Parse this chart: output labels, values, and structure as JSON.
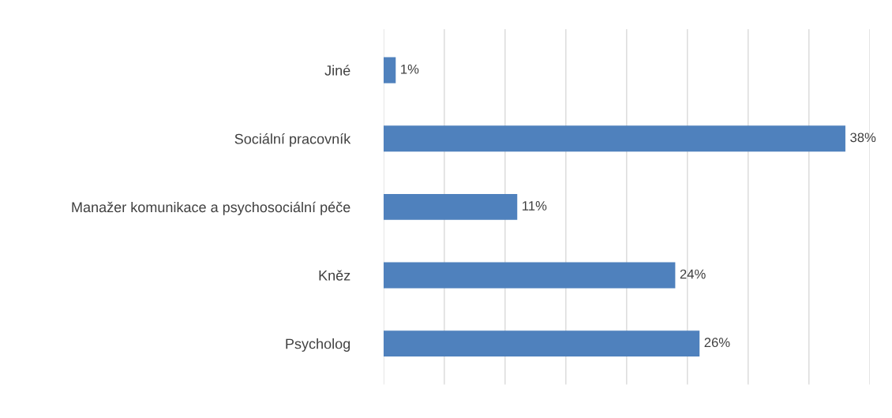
{
  "chart_data": {
    "type": "bar",
    "orientation": "horizontal",
    "categories": [
      "Jiné",
      "Sociální pracovník",
      "Manažer komunikace a psychosociální péče",
      "Kněz",
      "Psycholog"
    ],
    "values": [
      1,
      38,
      11,
      24,
      26
    ],
    "value_labels": [
      "1%",
      "38%",
      "11%",
      "24%",
      "26%"
    ],
    "color": "#4f81bd",
    "xlim": [
      0,
      40
    ],
    "xticks": [
      {
        "value": 0,
        "label": null
      },
      {
        "value": 5,
        "label": null
      },
      {
        "value": 10,
        "label": null
      },
      {
        "value": 15,
        "label": null
      },
      {
        "value": 20,
        "label": null
      },
      {
        "value": 25,
        "label": null
      },
      {
        "value": 30,
        "label": null
      },
      {
        "value": 35,
        "label": null
      },
      {
        "value": 40,
        "label": null
      }
    ],
    "grid": "x",
    "tick_labels": "y",
    "legend": false
  }
}
